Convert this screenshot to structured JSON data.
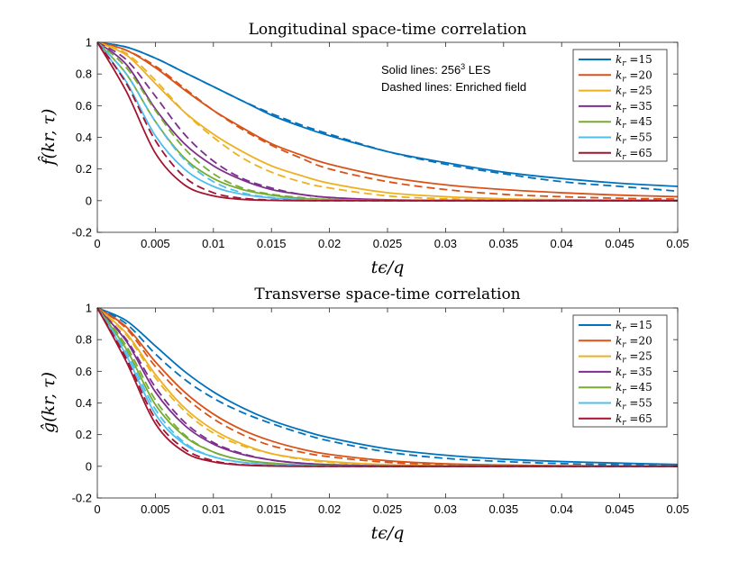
{
  "chart_data": [
    {
      "type": "line",
      "title": "Longitudinal space-time correlation",
      "xlabel": "tϵ/q",
      "ylabel": "f̂(kr, τ)",
      "xlim": [
        0,
        0.05
      ],
      "ylim": [
        -0.2,
        1
      ],
      "xticks": [
        "0",
        "0.005",
        "0.01",
        "0.015",
        "0.02",
        "0.025",
        "0.03",
        "0.035",
        "0.04",
        "0.045",
        "0.05"
      ],
      "yticks": [
        "-0.2",
        "0",
        "0.2",
        "0.4",
        "0.6",
        "0.8",
        "1"
      ],
      "grid": false,
      "legend_position": "top-right",
      "annotation_solid": "Solid lines: 256",
      "annotation_solid_sup": "3",
      "annotation_solid_tail": " LES",
      "annotation_dashed": "Dashed lines: Enriched field",
      "x": [
        0,
        0.0025,
        0.005,
        0.0075,
        0.01,
        0.0125,
        0.015,
        0.0175,
        0.02,
        0.025,
        0.03,
        0.035,
        0.04,
        0.045,
        0.05
      ],
      "series": [
        {
          "name": "kr =15",
          "label_sym": "k",
          "label_sub": "r",
          "label_val": " =15",
          "color": "#0072BD",
          "solid": [
            1,
            0.97,
            0.9,
            0.81,
            0.72,
            0.63,
            0.54,
            0.47,
            0.41,
            0.31,
            0.24,
            0.18,
            0.14,
            0.11,
            0.09
          ],
          "dashed": [
            1,
            0.97,
            0.9,
            0.81,
            0.72,
            0.63,
            0.55,
            0.48,
            0.42,
            0.31,
            0.23,
            0.17,
            0.12,
            0.09,
            0.06
          ]
        },
        {
          "name": "kr =20",
          "label_sym": "k",
          "label_sub": "r",
          "label_val": " =20",
          "color": "#D95319",
          "solid": [
            1,
            0.95,
            0.84,
            0.7,
            0.57,
            0.46,
            0.36,
            0.29,
            0.23,
            0.15,
            0.1,
            0.07,
            0.05,
            0.035,
            0.025
          ],
          "dashed": [
            1,
            0.95,
            0.85,
            0.71,
            0.57,
            0.45,
            0.35,
            0.27,
            0.2,
            0.12,
            0.07,
            0.04,
            0.025,
            0.015,
            0.01
          ]
        },
        {
          "name": "kr =25",
          "label_sym": "k",
          "label_sub": "r",
          "label_val": " =25",
          "color": "#EDB120",
          "solid": [
            1,
            0.92,
            0.74,
            0.56,
            0.42,
            0.31,
            0.22,
            0.16,
            0.11,
            0.05,
            0.025,
            0.012,
            0.006,
            0.003,
            0.002
          ],
          "dashed": [
            1,
            0.93,
            0.76,
            0.56,
            0.4,
            0.27,
            0.18,
            0.12,
            0.08,
            0.03,
            0.012,
            0.005,
            0.002,
            0.001,
            0
          ]
        },
        {
          "name": "kr =35",
          "label_sym": "k",
          "label_sub": "r",
          "label_val": " =35",
          "color": "#7E2F8E",
          "solid": [
            1,
            0.86,
            0.58,
            0.36,
            0.22,
            0.13,
            0.07,
            0.04,
            0.02,
            0.005,
            0.001,
            0,
            0,
            0,
            0
          ],
          "dashed": [
            1,
            0.89,
            0.66,
            0.42,
            0.25,
            0.14,
            0.08,
            0.04,
            0.02,
            0.004,
            0.001,
            0,
            0,
            0,
            0
          ]
        },
        {
          "name": "kr =45",
          "label_sym": "k",
          "label_sub": "r",
          "label_val": " =45",
          "color": "#77AC30",
          "solid": [
            1,
            0.8,
            0.5,
            0.27,
            0.14,
            0.07,
            0.035,
            0.015,
            0.007,
            0.001,
            0,
            0,
            0,
            0,
            0
          ],
          "dashed": [
            1,
            0.84,
            0.57,
            0.33,
            0.17,
            0.08,
            0.04,
            0.02,
            0.008,
            0.001,
            0,
            0,
            0,
            0,
            0
          ]
        },
        {
          "name": "kr =55",
          "label_sym": "k",
          "label_sub": "r",
          "label_val": " =55",
          "color": "#4DBEEE",
          "solid": [
            1,
            0.75,
            0.41,
            0.2,
            0.09,
            0.04,
            0.017,
            0.007,
            0.003,
            0,
            0,
            0,
            0,
            0,
            0
          ],
          "dashed": [
            1,
            0.8,
            0.5,
            0.26,
            0.12,
            0.05,
            0.02,
            0.008,
            0.003,
            0,
            0,
            0,
            0,
            0,
            0
          ]
        },
        {
          "name": "kr =65",
          "label_sym": "k",
          "label_sub": "r",
          "label_val": " =65",
          "color": "#A2142F",
          "solid": [
            1,
            0.69,
            0.3,
            0.1,
            0.03,
            0.008,
            0.002,
            0,
            0,
            0,
            0,
            0,
            0,
            0,
            0
          ],
          "dashed": [
            1,
            0.74,
            0.38,
            0.15,
            0.05,
            0.015,
            0.004,
            0.001,
            0,
            0,
            0,
            0,
            0,
            0,
            0
          ]
        }
      ]
    },
    {
      "type": "line",
      "title": "Transverse space-time correlation",
      "xlabel": "tϵ/q",
      "ylabel": "ĝ(kr, τ)",
      "xlim": [
        0,
        0.05
      ],
      "ylim": [
        -0.2,
        1
      ],
      "xticks": [
        "0",
        "0.005",
        "0.01",
        "0.015",
        "0.02",
        "0.025",
        "0.03",
        "0.035",
        "0.04",
        "0.045",
        "0.05"
      ],
      "yticks": [
        "-0.2",
        "0",
        "0.2",
        "0.4",
        "0.6",
        "0.8",
        "1"
      ],
      "grid": false,
      "legend_position": "top-right",
      "x": [
        0,
        0.0025,
        0.005,
        0.0075,
        0.01,
        0.0125,
        0.015,
        0.0175,
        0.02,
        0.025,
        0.03,
        0.035,
        0.04,
        0.045,
        0.05
      ],
      "series": [
        {
          "name": "kr =15",
          "label_sym": "k",
          "label_sub": "r",
          "label_val": " =15",
          "color": "#0072BD",
          "solid": [
            1,
            0.92,
            0.76,
            0.6,
            0.47,
            0.37,
            0.29,
            0.23,
            0.18,
            0.11,
            0.07,
            0.045,
            0.03,
            0.02,
            0.012
          ],
          "dashed": [
            1,
            0.9,
            0.71,
            0.55,
            0.43,
            0.34,
            0.27,
            0.21,
            0.16,
            0.09,
            0.05,
            0.03,
            0.017,
            0.01,
            0.006
          ]
        },
        {
          "name": "kr =20",
          "label_sym": "k",
          "label_sub": "r",
          "label_val": " =20",
          "color": "#D95319",
          "solid": [
            1,
            0.88,
            0.66,
            0.47,
            0.33,
            0.23,
            0.16,
            0.11,
            0.075,
            0.035,
            0.016,
            0.008,
            0.004,
            0.002,
            0.001
          ],
          "dashed": [
            1,
            0.87,
            0.63,
            0.44,
            0.3,
            0.2,
            0.13,
            0.09,
            0.06,
            0.025,
            0.01,
            0.004,
            0.002,
            0.001,
            0
          ]
        },
        {
          "name": "kr =25",
          "label_sym": "k",
          "label_sub": "r",
          "label_val": " =25",
          "color": "#EDB120",
          "solid": [
            1,
            0.84,
            0.58,
            0.37,
            0.23,
            0.14,
            0.08,
            0.05,
            0.03,
            0.01,
            0.003,
            0.001,
            0,
            0,
            0
          ],
          "dashed": [
            1,
            0.83,
            0.56,
            0.35,
            0.21,
            0.13,
            0.08,
            0.045,
            0.025,
            0.008,
            0.002,
            0.001,
            0,
            0,
            0
          ]
        },
        {
          "name": "kr =35",
          "label_sym": "k",
          "label_sub": "r",
          "label_val": " =35",
          "color": "#7E2F8E",
          "solid": [
            1,
            0.79,
            0.47,
            0.26,
            0.14,
            0.075,
            0.04,
            0.02,
            0.01,
            0.002,
            0,
            0,
            0,
            0,
            0
          ],
          "dashed": [
            1,
            0.8,
            0.5,
            0.28,
            0.15,
            0.08,
            0.04,
            0.02,
            0.01,
            0.002,
            0,
            0,
            0,
            0,
            0
          ]
        },
        {
          "name": "kr =45",
          "label_sym": "k",
          "label_sub": "r",
          "label_val": " =45",
          "color": "#77AC30",
          "solid": [
            1,
            0.74,
            0.39,
            0.19,
            0.09,
            0.04,
            0.02,
            0.008,
            0.003,
            0,
            0,
            0,
            0,
            0,
            0
          ],
          "dashed": [
            1,
            0.76,
            0.42,
            0.2,
            0.09,
            0.04,
            0.018,
            0.007,
            0.003,
            0,
            0,
            0,
            0,
            0,
            0
          ]
        },
        {
          "name": "kr =55",
          "label_sym": "k",
          "label_sub": "r",
          "label_val": " =55",
          "color": "#4DBEEE",
          "solid": [
            1,
            0.7,
            0.33,
            0.14,
            0.06,
            0.025,
            0.01,
            0.004,
            0.001,
            0,
            0,
            0,
            0,
            0,
            0
          ],
          "dashed": [
            1,
            0.72,
            0.36,
            0.15,
            0.06,
            0.024,
            0.009,
            0.003,
            0.001,
            0,
            0,
            0,
            0,
            0,
            0
          ]
        },
        {
          "name": "kr =65",
          "label_sym": "k",
          "label_sub": "r",
          "label_val": " =65",
          "color": "#A2142F",
          "solid": [
            1,
            0.66,
            0.27,
            0.09,
            0.028,
            0.008,
            0.002,
            0,
            0,
            0,
            0,
            0,
            0,
            0,
            0
          ],
          "dashed": [
            1,
            0.68,
            0.3,
            0.11,
            0.035,
            0.01,
            0.003,
            0.001,
            0,
            0,
            0,
            0,
            0,
            0,
            0
          ]
        }
      ]
    }
  ]
}
